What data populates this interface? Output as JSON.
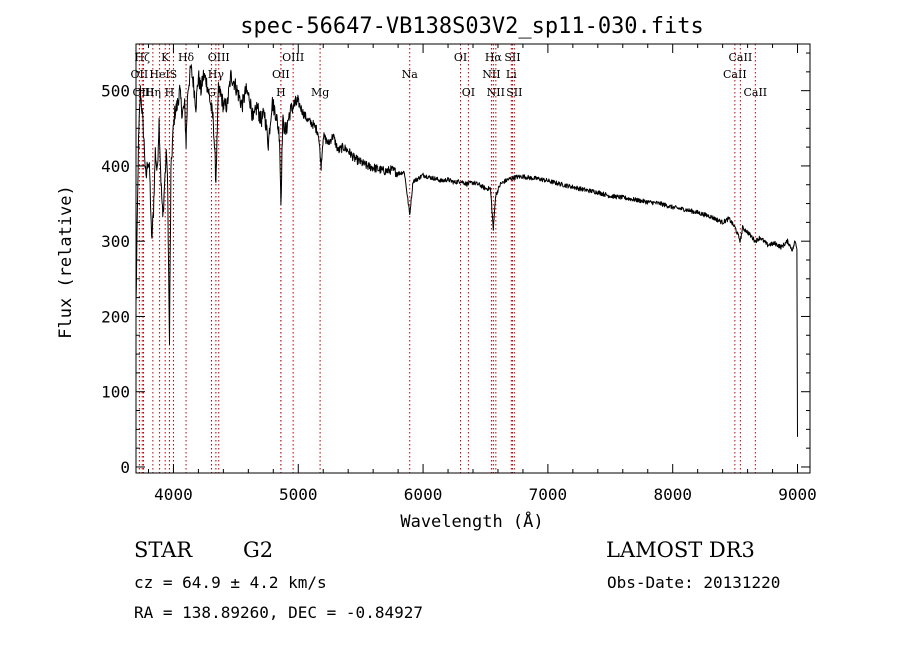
{
  "chart_data": {
    "type": "line",
    "title": "spec-56647-VB138S03V2_sp11-030.fits",
    "xlabel": "Wavelength (Å)",
    "ylabel": "Flux (relative)",
    "xlim": [
      3700,
      9100
    ],
    "ylim": [
      -8,
      562
    ],
    "xticks": [
      4000,
      5000,
      6000,
      7000,
      8000,
      9000
    ],
    "yticks": [
      0,
      100,
      200,
      300,
      400,
      500
    ],
    "grid": false,
    "series": [
      {
        "name": "flux",
        "x": [
          3700,
          3720,
          3735,
          3750,
          3765,
          3780,
          3795,
          3810,
          3825,
          3840,
          3855,
          3870,
          3885,
          3900,
          3915,
          3930,
          3945,
          3955,
          3968,
          3980,
          3995,
          4010,
          4030,
          4050,
          4070,
          4090,
          4101,
          4115,
          4140,
          4160,
          4180,
          4200,
          4220,
          4240,
          4260,
          4280,
          4300,
          4320,
          4340,
          4360,
          4380,
          4400,
          4430,
          4460,
          4490,
          4520,
          4550,
          4580,
          4610,
          4640,
          4670,
          4700,
          4730,
          4760,
          4790,
          4820,
          4850,
          4861,
          4875,
          4900,
          4930,
          4960,
          5000,
          5040,
          5080,
          5120,
          5160,
          5183,
          5200,
          5240,
          5280,
          5320,
          5360,
          5400,
          5450,
          5500,
          5550,
          5600,
          5650,
          5700,
          5750,
          5800,
          5850,
          5893,
          5920,
          5950,
          6000,
          6050,
          6100,
          6150,
          6200,
          6250,
          6300,
          6350,
          6400,
          6450,
          6500,
          6540,
          6563,
          6580,
          6620,
          6680,
          6740,
          6800,
          6860,
          6920,
          6980,
          7050,
          7120,
          7200,
          7300,
          7400,
          7500,
          7600,
          7700,
          7800,
          7900,
          8000,
          8100,
          8200,
          8300,
          8400,
          8450,
          8500,
          8542,
          8560,
          8600,
          8662,
          8700,
          8760,
          8820,
          8870,
          8920,
          8960,
          8980,
          8995,
          9000
        ],
        "y": [
          215,
          430,
          500,
          470,
          430,
          380,
          410,
          390,
          300,
          340,
          420,
          390,
          460,
          380,
          330,
          380,
          420,
          360,
          165,
          390,
          440,
          470,
          480,
          500,
          470,
          480,
          430,
          500,
          530,
          510,
          480,
          520,
          500,
          520,
          515,
          500,
          480,
          460,
          380,
          500,
          495,
          480,
          480,
          520,
          510,
          495,
          480,
          500,
          490,
          460,
          480,
          460,
          470,
          430,
          485,
          470,
          440,
          350,
          460,
          445,
          470,
          480,
          485,
          470,
          460,
          455,
          445,
          400,
          440,
          430,
          440,
          420,
          425,
          420,
          410,
          405,
          400,
          398,
          395,
          393,
          395,
          390,
          392,
          335,
          380,
          382,
          388,
          385,
          383,
          380,
          382,
          378,
          380,
          376,
          378,
          375,
          370,
          370,
          315,
          360,
          376,
          382,
          385,
          386,
          384,
          383,
          381,
          378,
          375,
          372,
          368,
          365,
          360,
          358,
          355,
          352,
          350,
          345,
          342,
          338,
          333,
          325,
          330,
          318,
          300,
          318,
          312,
          300,
          305,
          295,
          297,
          292,
          300,
          288,
          300,
          292,
          40
        ]
      }
    ],
    "line_labels": [
      {
        "name": "H&#948;",
        "wl": 4101,
        "row": 0
      },
      {
        "name": "K",
        "wl": 3934,
        "row": 0
      },
      {
        "name": "H&#947;",
        "wl": 4340,
        "row": 0
      },
      {
        "name": "OIII",
        "wl": 4363,
        "row": 0
      }
    ],
    "lines": [
      {
        "label": "Hζ",
        "wl": 3750,
        "row": 0
      },
      {
        "label": "K",
        "wl": 3934,
        "row": 0
      },
      {
        "label": "Hδ",
        "wl": 4101,
        "row": 0
      },
      {
        "label": "OIII",
        "wl": 4363,
        "row": 0
      },
      {
        "label": "OIII",
        "wl": 4959,
        "row": 0
      },
      {
        "label": "OI",
        "wl": 6300,
        "row": 0
      },
      {
        "label": "Hα",
        "wl": 6563,
        "row": 0
      },
      {
        "label": "SII",
        "wl": 6716,
        "row": 0
      },
      {
        "label": "CaII",
        "wl": 8542,
        "row": 0
      },
      {
        "label": "OII",
        "wl": 3727,
        "row": 1
      },
      {
        "label": "HeI",
        "wl": 3889,
        "row": 1
      },
      {
        "label": "S",
        "wl": 4000,
        "row": 1
      },
      {
        "label": "Hγ",
        "wl": 4340,
        "row": 1
      },
      {
        "label": "OII",
        "wl": 4861,
        "row": 1
      },
      {
        "label": "Na",
        "wl": 5893,
        "row": 1
      },
      {
        "label": "NII",
        "wl": 6548,
        "row": 1
      },
      {
        "label": "Li",
        "wl": 6707,
        "row": 1
      },
      {
        "label": "CaII",
        "wl": 8498,
        "row": 1
      },
      {
        "label": "OIII",
        "wl": 3760,
        "row": 2
      },
      {
        "label": "Hη",
        "wl": 3835,
        "row": 2
      },
      {
        "label": "H",
        "wl": 3968,
        "row": 2
      },
      {
        "label": "G",
        "wl": 4305,
        "row": 2
      },
      {
        "label": "H",
        "wl": 4861,
        "row": 2
      },
      {
        "label": "Mg",
        "wl": 5175,
        "row": 2
      },
      {
        "label": "OI",
        "wl": 6363,
        "row": 2
      },
      {
        "label": "NII",
        "wl": 6583,
        "row": 2
      },
      {
        "label": "SII",
        "wl": 6731,
        "row": 2
      },
      {
        "label": "CaII",
        "wl": 8662,
        "row": 2
      }
    ]
  },
  "info": {
    "class_text": "STAR",
    "subclass_text": "G2",
    "survey": "LAMOST DR3",
    "cz": "cz = 64.9 ± 4.2 km/s",
    "obs_date": "Obs-Date: 20131220",
    "coords": "RA = 138.89260, DEC =  -0.84927"
  }
}
